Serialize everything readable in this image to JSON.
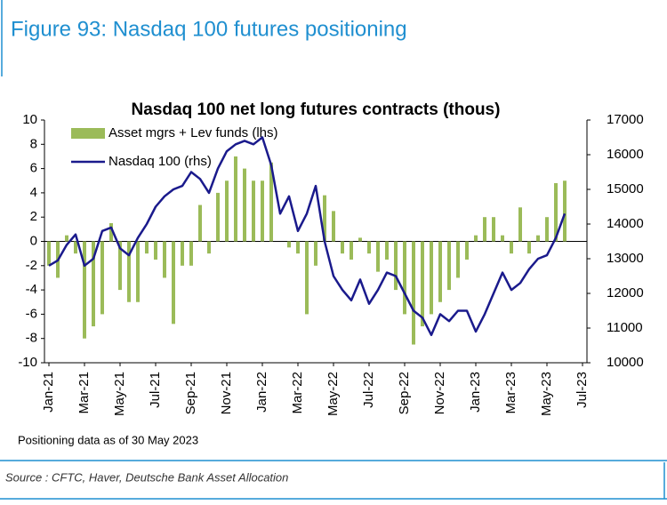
{
  "chart_data": {
    "type": "bar-line",
    "figure_title": "Figure 93: Nasdaq 100 futures positioning",
    "title": "Nasdaq 100 net long futures contracts  (thous)",
    "note": "Positioning data as of 30 May 2023",
    "source": "Source : CFTC, Haver, Deutsche Bank Asset Allocation",
    "categories": [
      "Jan-21",
      null,
      null,
      null,
      "Mar-21",
      null,
      null,
      null,
      "May-21",
      null,
      null,
      null,
      "Jul-21",
      null,
      null,
      null,
      "Sep-21",
      null,
      null,
      null,
      "Nov-21",
      null,
      null,
      null,
      "Jan-22",
      null,
      null,
      null,
      "Mar-22",
      null,
      null,
      null,
      "May-22",
      null,
      null,
      null,
      "Jul-22",
      null,
      null,
      null,
      "Sep-22",
      null,
      null,
      null,
      "Nov-22",
      null,
      null,
      null,
      "Jan-23",
      null,
      null,
      null,
      "Mar-23",
      null,
      null,
      null,
      "May-23",
      null,
      null,
      null,
      "Jul-23"
    ],
    "series": [
      {
        "name": "Asset mgrs + Lev funds (lhs)",
        "type": "bar",
        "color": "#9bbb59",
        "values": [
          -2,
          -3,
          0.5,
          -1,
          -8,
          -7,
          -6,
          1.5,
          -4,
          -5,
          -5,
          -1,
          -1.5,
          -3,
          -6.8,
          -2,
          -2,
          3,
          -1,
          4,
          5,
          7,
          6,
          5,
          5,
          6.5,
          0,
          -0.5,
          -1,
          -6,
          -2,
          3.8,
          2.5,
          -1,
          -1.5,
          0.3,
          -1,
          -2.5,
          -1.5,
          -4,
          -6,
          -8.5,
          -7,
          -6,
          -5,
          -4,
          -3,
          -1.5,
          0.5,
          2,
          2,
          0.5,
          -1,
          2.8,
          -1,
          0.5,
          2,
          4.8,
          5,
          null,
          null
        ]
      },
      {
        "name": "Nasdaq 100 (rhs)",
        "type": "line",
        "axis": "y2",
        "color": "#1a1a8c",
        "values": [
          12800,
          12950,
          13400,
          13700,
          12800,
          13000,
          13800,
          13900,
          13300,
          13100,
          13600,
          14000,
          14500,
          14800,
          15000,
          15100,
          15500,
          15300,
          14900,
          15600,
          16100,
          16300,
          16400,
          16300,
          16500,
          15700,
          14300,
          14800,
          13800,
          14300,
          15100,
          13500,
          12500,
          12100,
          11800,
          12400,
          11700,
          12100,
          12600,
          12500,
          12000,
          11500,
          11300,
          10800,
          11400,
          11200,
          11500,
          11500,
          10900,
          11400,
          12000,
          12600,
          12100,
          12300,
          12700,
          13000,
          13100,
          13600,
          14300,
          null,
          null
        ]
      }
    ],
    "ylim": [
      -10,
      10
    ],
    "yticks": [
      -10,
      -8,
      -6,
      -4,
      -2,
      0,
      2,
      4,
      6,
      8,
      10
    ],
    "y2lim": [
      10000,
      17000
    ],
    "y2ticks": [
      10000,
      11000,
      12000,
      13000,
      14000,
      15000,
      16000,
      17000
    ],
    "legend": "top-left"
  }
}
